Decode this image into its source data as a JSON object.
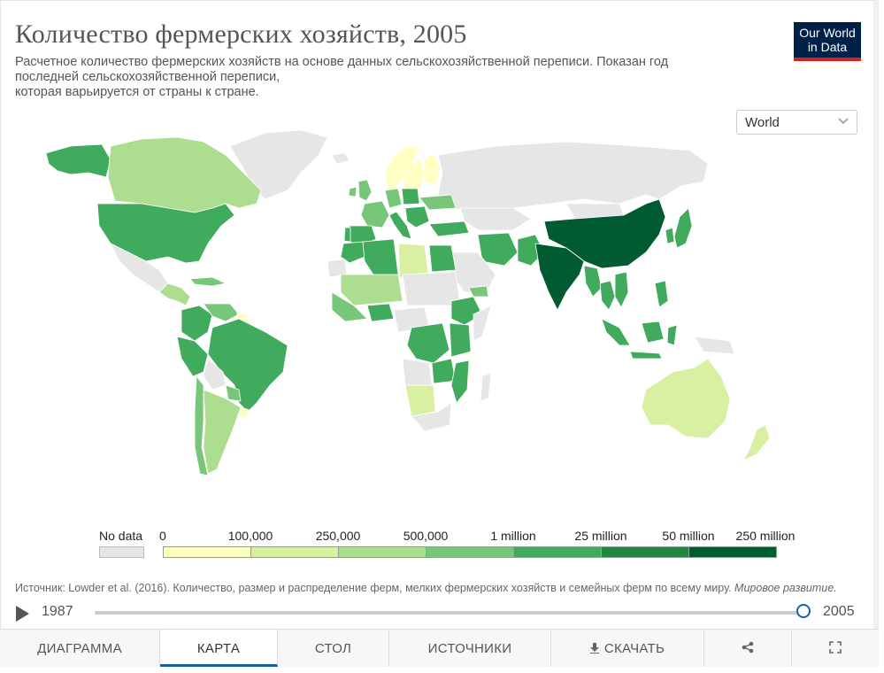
{
  "title": "Количество фермерских хозяйств, 2005",
  "subtitle_lines": [
    "Расчетное количество фермерских хозяйств на основе данных сельскохозяйственной переписи. Показан год",
    "последней сельскохозяйственной переписи,",
    "которая варьируется от страны к стране."
  ],
  "logo": {
    "line1": "Our World",
    "line2": "in Data"
  },
  "region_select": {
    "value": "World",
    "icon": "chevron-down-icon"
  },
  "legend": {
    "no_data_label": "No data",
    "ticks": [
      "0",
      "100,000",
      "250,000",
      "500,000",
      "1 million",
      "25 million",
      "50 million",
      "250 million"
    ],
    "colors": [
      "#ffffc4",
      "#d9f0a3",
      "#addd8e",
      "#78c679",
      "#41ab5d",
      "#238443",
      "#005a32"
    ],
    "no_data_color": "#e6e6e6"
  },
  "source": {
    "text": "Источник: Lowder et al. (2016). Количество, размер и распределение ферм, мелких фермерских хозяйств и семейных ферм по всему миру.",
    "italic": "Мировое развитие."
  },
  "timeline": {
    "start": "1987",
    "end": "2005",
    "position": 1.0
  },
  "tabs": [
    {
      "label": "ДИАГРАММА",
      "active": false
    },
    {
      "label": "КАРТА",
      "active": true
    },
    {
      "label": "СТОЛ",
      "active": false
    },
    {
      "label": "ИСТОЧНИКИ",
      "active": false
    },
    {
      "label": "СКАЧАТЬ",
      "active": false,
      "icon": "download-icon"
    },
    {
      "label": "",
      "active": false,
      "icon": "share-icon"
    },
    {
      "label": "",
      "active": false,
      "icon": "fullscreen-icon"
    }
  ]
}
